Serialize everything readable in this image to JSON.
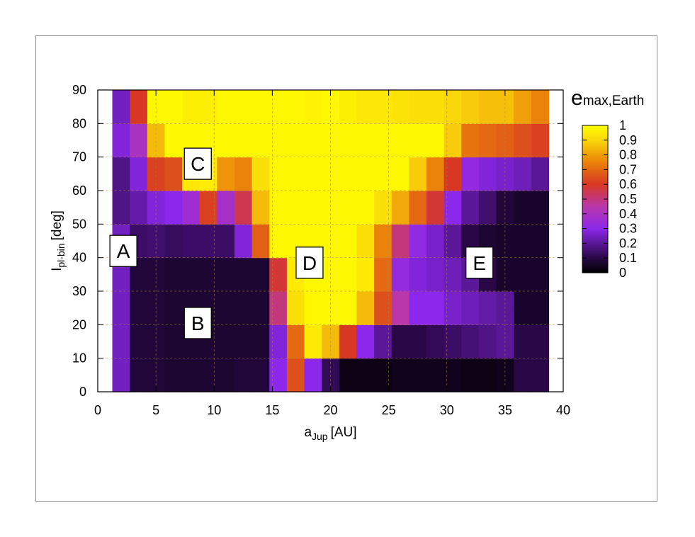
{
  "chart_data": {
    "type": "heatmap",
    "xlabel": {
      "main": "a",
      "sub": "Jup",
      "unit": "[AU]"
    },
    "ylabel": {
      "main": "I",
      "sub": "pl-bin",
      "unit": "[deg]"
    },
    "colorbar_label": {
      "main": "e",
      "sub": "max,Earth"
    },
    "xlim": [
      0,
      40
    ],
    "ylim": [
      0,
      90
    ],
    "xticks": [
      "0",
      "5",
      "10",
      "15",
      "20",
      "25",
      "30",
      "35",
      "40"
    ],
    "yticks": [
      "0",
      "10",
      "20",
      "30",
      "40",
      "50",
      "60",
      "70",
      "80",
      "90"
    ],
    "colorbar_ticks": [
      "0",
      "0.1",
      "0.2",
      "0.3",
      "0.4",
      "0.5",
      "0.6",
      "0.7",
      "0.8",
      "0.9",
      "1"
    ],
    "colorbar_range": [
      0,
      1
    ],
    "colormap": "gnuplot-pm3d (black-purple-red-orange-yellow)",
    "x_centers": [
      2,
      3.5,
      5,
      6.5,
      8,
      9.5,
      11,
      12.5,
      14,
      15.5,
      17,
      18.5,
      20,
      21.5,
      23,
      24.5,
      26,
      27.5,
      29,
      30.5,
      32,
      33.5,
      35,
      36.5,
      38
    ],
    "y_centers": [
      5,
      15,
      25,
      35,
      45,
      55,
      65,
      75,
      85
    ],
    "values": [
      [
        0.25,
        0.08,
        0.08,
        0.07,
        0.07,
        0.07,
        0.07,
        0.08,
        0.08,
        0.3,
        0.65,
        0.3,
        0.12,
        0.03,
        0.03,
        0.03,
        0.04,
        0.04,
        0.04,
        0.04,
        0.03,
        0.03,
        0.04,
        0.1,
        0.1
      ],
      [
        0.25,
        0.08,
        0.08,
        0.07,
        0.07,
        0.07,
        0.07,
        0.07,
        0.07,
        0.28,
        0.7,
        0.95,
        0.85,
        0.6,
        0.3,
        0.2,
        0.1,
        0.1,
        0.12,
        0.14,
        0.16,
        0.18,
        0.2,
        0.1,
        0.1
      ],
      [
        0.25,
        0.08,
        0.08,
        0.07,
        0.07,
        0.07,
        0.07,
        0.07,
        0.07,
        0.5,
        0.92,
        0.98,
        0.98,
        0.98,
        0.85,
        0.65,
        0.45,
        0.3,
        0.3,
        0.26,
        0.24,
        0.22,
        0.2,
        0.06,
        0.06
      ],
      [
        0.25,
        0.08,
        0.08,
        0.07,
        0.07,
        0.07,
        0.07,
        0.07,
        0.07,
        0.58,
        0.95,
        0.98,
        0.98,
        0.98,
        0.95,
        0.7,
        0.33,
        0.28,
        0.26,
        0.24,
        0.2,
        0.1,
        0.06,
        0.06,
        0.06
      ],
      [
        0.25,
        0.14,
        0.15,
        0.13,
        0.14,
        0.14,
        0.14,
        0.28,
        0.68,
        0.98,
        0.98,
        0.98,
        0.98,
        0.98,
        0.92,
        0.75,
        0.5,
        0.32,
        0.26,
        0.2,
        0.1,
        0.07,
        0.06,
        0.06,
        0.06
      ],
      [
        0.18,
        0.22,
        0.28,
        0.3,
        0.36,
        0.62,
        0.38,
        0.55,
        0.85,
        0.98,
        0.98,
        0.98,
        0.98,
        0.98,
        0.98,
        0.92,
        0.82,
        0.7,
        0.58,
        0.3,
        0.2,
        0.15,
        0.08,
        0.06,
        0.06
      ],
      [
        0.18,
        0.28,
        0.62,
        0.65,
        0.94,
        0.95,
        0.78,
        0.75,
        0.92,
        0.98,
        0.98,
        0.98,
        0.98,
        0.98,
        0.98,
        0.98,
        0.98,
        0.88,
        0.75,
        0.6,
        0.32,
        0.28,
        0.26,
        0.24,
        0.2
      ],
      [
        0.28,
        0.4,
        0.85,
        0.98,
        0.98,
        0.98,
        0.98,
        0.98,
        0.98,
        0.98,
        0.98,
        0.98,
        0.98,
        0.98,
        0.98,
        0.98,
        0.98,
        0.98,
        0.98,
        0.88,
        0.72,
        0.7,
        0.68,
        0.65,
        0.62
      ],
      [
        0.25,
        0.6,
        0.98,
        0.98,
        0.96,
        0.96,
        0.98,
        0.98,
        0.98,
        0.98,
        0.98,
        0.97,
        0.98,
        0.96,
        0.94,
        0.94,
        0.93,
        0.92,
        0.92,
        0.9,
        0.88,
        0.86,
        0.86,
        0.8,
        0.75
      ]
    ],
    "region_labels": [
      {
        "text": "A",
        "x": 2.2,
        "y": 42
      },
      {
        "text": "B",
        "x": 8.6,
        "y": 20.5
      },
      {
        "text": "C",
        "x": 8.6,
        "y": 68
      },
      {
        "text": "D",
        "x": 18.2,
        "y": 38.5
      },
      {
        "text": "E",
        "x": 32.8,
        "y": 38.5
      }
    ],
    "grid": true
  }
}
